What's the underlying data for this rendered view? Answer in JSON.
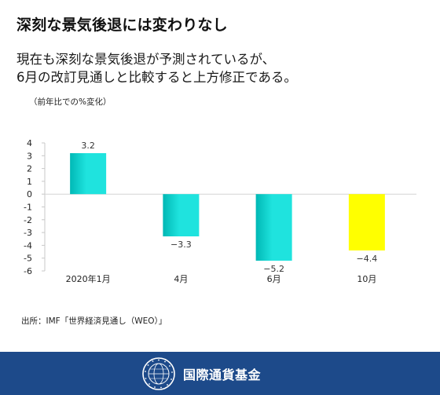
{
  "title": "深刻な景気後退には変わりなし",
  "subtitle_lines": [
    "現在も深刻な景気後退が予測されているが、",
    "6月の改訂見通しと比較すると上方修正である。"
  ],
  "unit_label": "（前年比での%変化）",
  "source": "出所：IMF「世界経済見通し（WEO）」",
  "footer": {
    "org_name": "国際通貨基金"
  },
  "colors": {
    "bar_cyan": "#1fe3de",
    "bar_cyan_dark": "#00b8b5",
    "bar_yellow": "#ffff00",
    "footer_bg": "#1d4a8a"
  },
  "chart_data": {
    "type": "bar",
    "categories": [
      "2020年1月",
      "4月",
      "6月",
      "10月"
    ],
    "values": [
      3.2,
      -3.3,
      -5.2,
      -4.4
    ],
    "value_labels": [
      "3.2",
      "−3.3",
      "−5.2",
      "−4.4"
    ],
    "y_ticks": [
      4,
      3,
      2,
      1,
      0,
      -1,
      -2,
      -3,
      -4,
      -5,
      -6
    ],
    "y_tick_labels": [
      "4",
      "3",
      "2",
      "1",
      "0",
      "-1",
      "-2",
      "-3",
      "-4",
      "-5",
      "-6"
    ],
    "ylim": [
      -6,
      4
    ],
    "grid": false,
    "bar_colors": [
      "cyan",
      "cyan",
      "cyan",
      "yellow"
    ],
    "title": "",
    "xlabel": "",
    "ylabel": ""
  }
}
